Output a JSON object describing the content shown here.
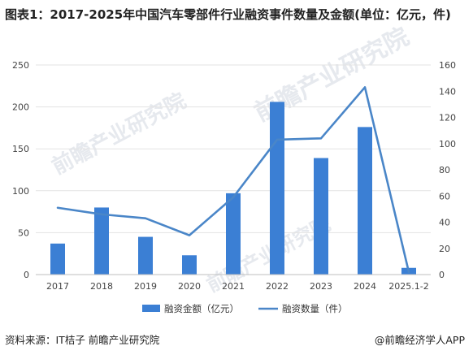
{
  "title": "图表1：2017-2025年中国汽车零部件行业融资事件数量及金额(单位：亿元，件)",
  "source": "资料来源：IT桔子 前瞻产业研究院",
  "brand": "@前瞻经济学人APP",
  "watermark": "前瞻产业研究院",
  "colors": {
    "bar": "#3b7fd4",
    "line": "#4a86c8",
    "grid": "#e3e3e3",
    "axis": "#bfbfbf"
  },
  "chart_data": {
    "type": "bar",
    "categories": [
      "2017",
      "2018",
      "2019",
      "2020",
      "2021",
      "2022",
      "2023",
      "2024",
      "2025.1-2"
    ],
    "series": [
      {
        "name": "融资金额（亿元）",
        "type": "bar",
        "axis": "left",
        "values": [
          37,
          80,
          45,
          23,
          97,
          206,
          139,
          176,
          8
        ]
      },
      {
        "name": "融资数量（件）",
        "type": "line",
        "axis": "right",
        "values": [
          51,
          46,
          43,
          30,
          59,
          103,
          104,
          143,
          2
        ]
      }
    ],
    "y_left": {
      "min": 0,
      "max": 250,
      "ticks": [
        0,
        50,
        100,
        150,
        200,
        250
      ]
    },
    "y_right": {
      "min": 0,
      "max": 160,
      "ticks": [
        0,
        20,
        40,
        60,
        80,
        100,
        120,
        140,
        160
      ]
    },
    "legend": "bottom"
  }
}
